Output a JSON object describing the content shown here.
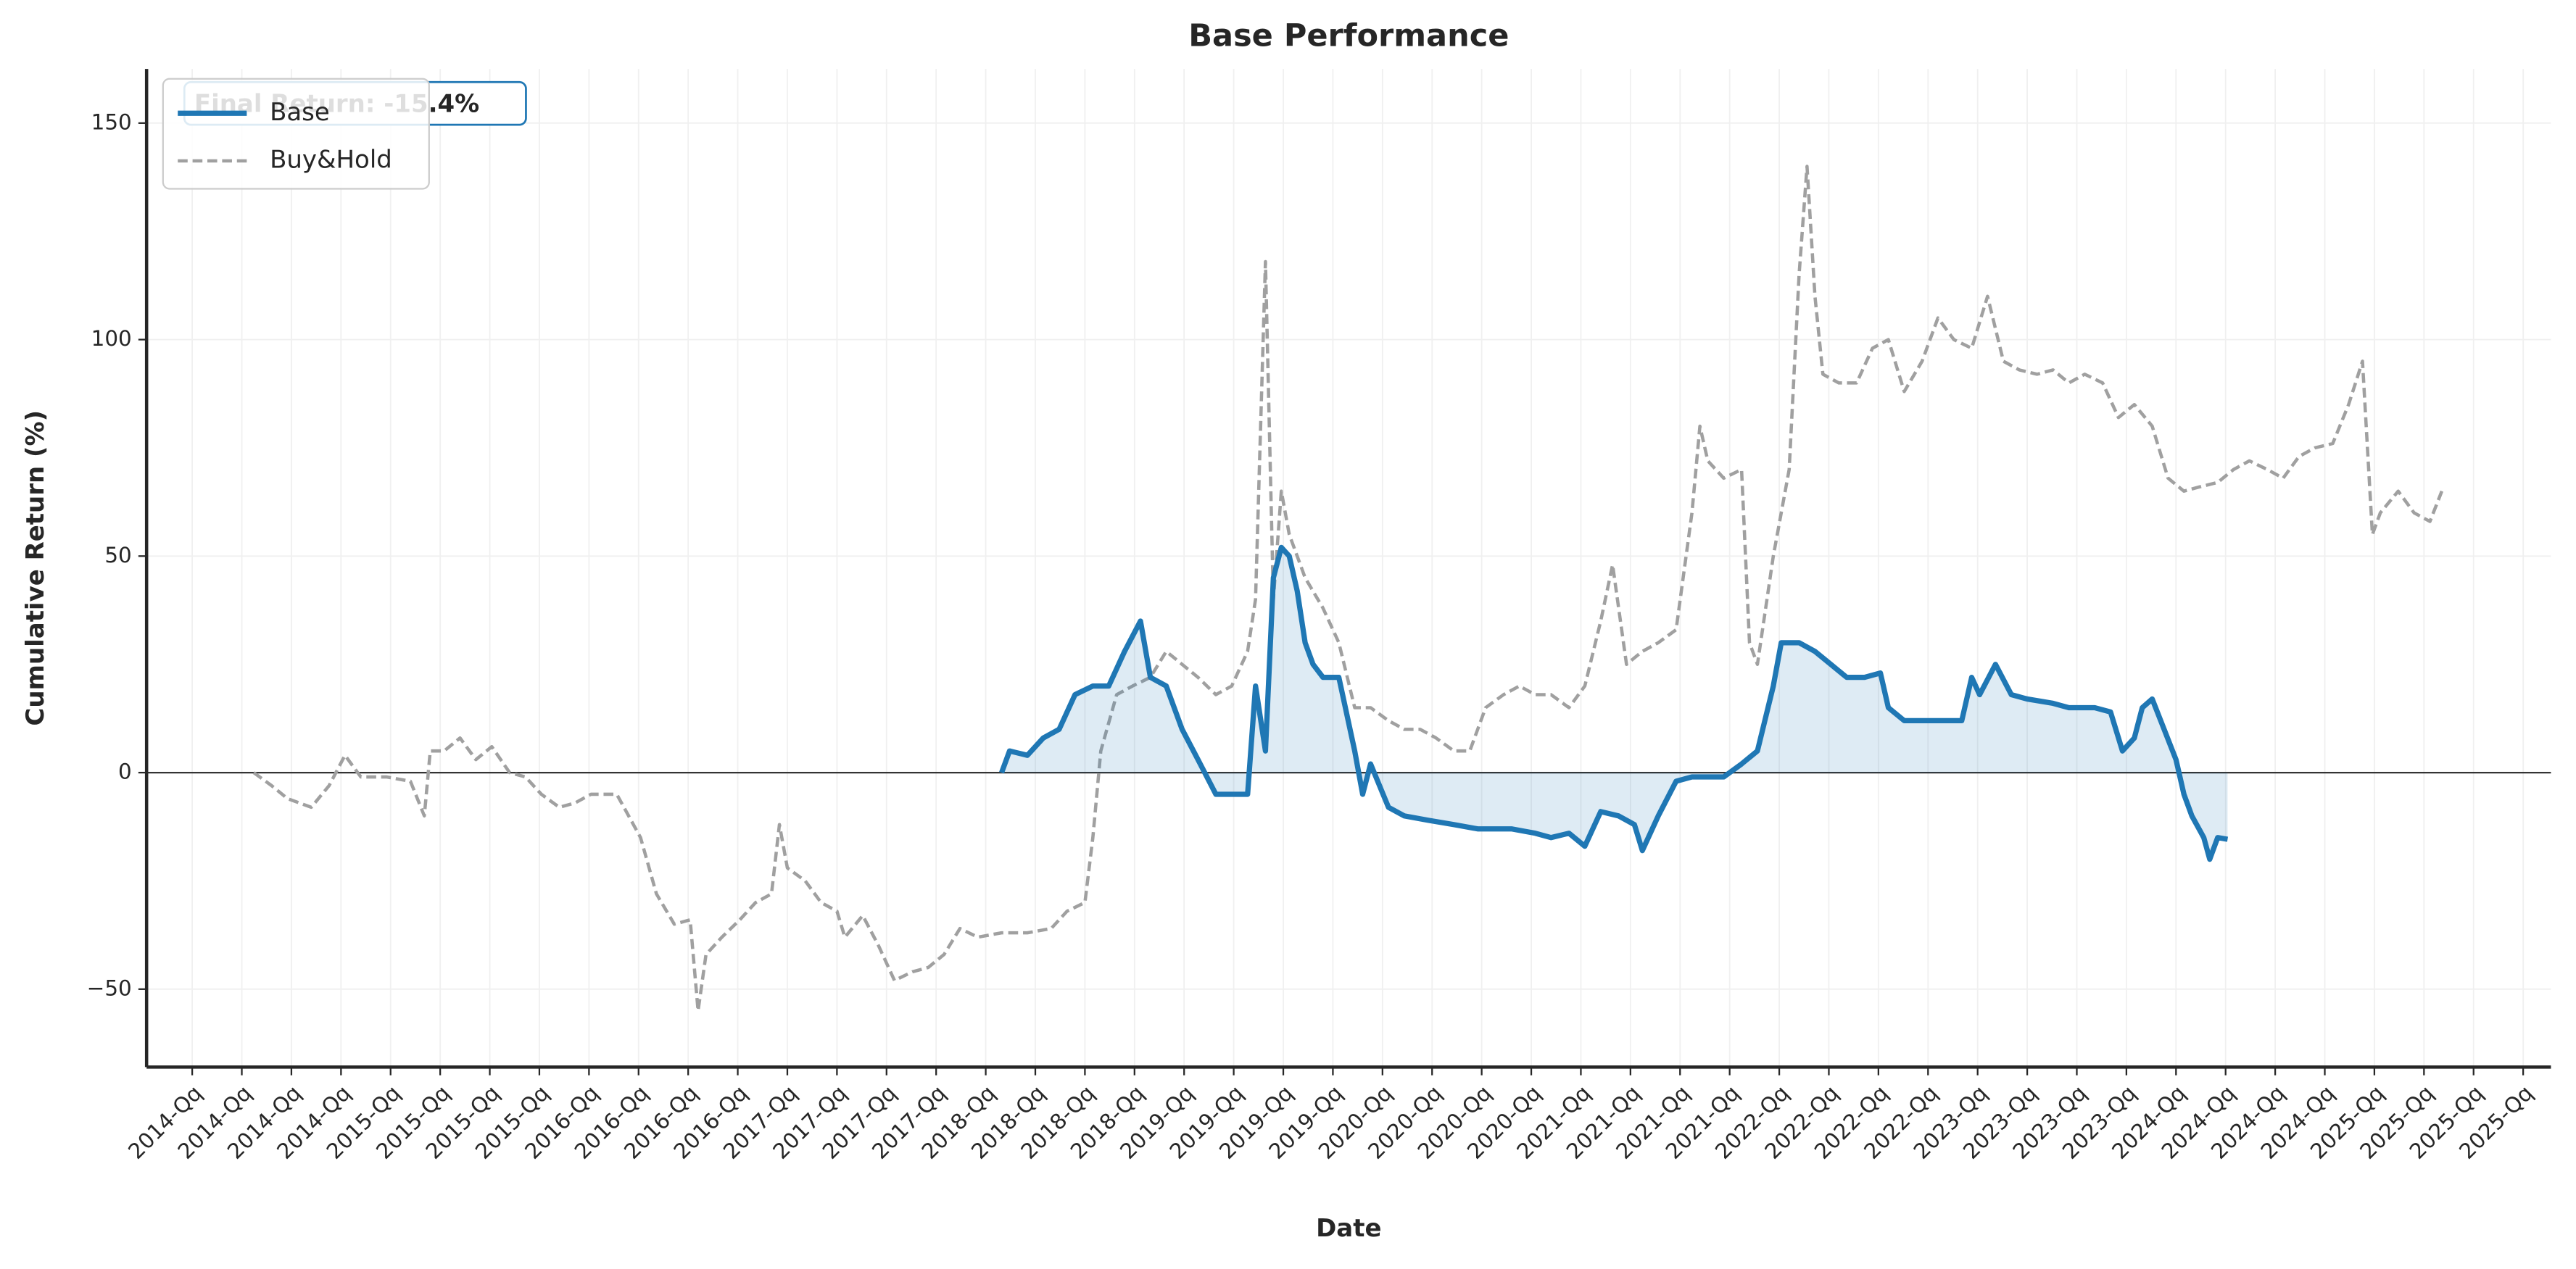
{
  "chart_data": {
    "type": "line",
    "title": "Base Performance",
    "xlabel": "Date",
    "ylabel": "Cumulative Return (%)",
    "annotation": "Final Return: -15.4%",
    "xlim": [
      2013.77,
      2025.89
    ],
    "ylim": [
      -68,
      162.5
    ],
    "yticks": [
      {
        "value": -50,
        "label": "−50"
      },
      0,
      50,
      100,
      150
    ],
    "xticks": [
      {
        "value": 2014,
        "label": "2014-Qq"
      },
      {
        "value": 2014.25,
        "label": "2014-Qq"
      },
      {
        "value": 2014.5,
        "label": "2014-Qq"
      },
      {
        "value": 2014.75,
        "label": "2014-Qq"
      },
      {
        "value": 2015,
        "label": "2015-Qq"
      },
      {
        "value": 2015.25,
        "label": "2015-Qq"
      },
      {
        "value": 2015.5,
        "label": "2015-Qq"
      },
      {
        "value": 2015.75,
        "label": "2015-Qq"
      },
      {
        "value": 2016,
        "label": "2016-Qq"
      },
      {
        "value": 2016.25,
        "label": "2016-Qq"
      },
      {
        "value": 2016.5,
        "label": "2016-Qq"
      },
      {
        "value": 2016.75,
        "label": "2016-Qq"
      },
      {
        "value": 2017,
        "label": "2017-Qq"
      },
      {
        "value": 2017.25,
        "label": "2017-Qq"
      },
      {
        "value": 2017.5,
        "label": "2017-Qq"
      },
      {
        "value": 2017.75,
        "label": "2017-Qq"
      },
      {
        "value": 2018,
        "label": "2018-Qq"
      },
      {
        "value": 2018.25,
        "label": "2018-Qq"
      },
      {
        "value": 2018.5,
        "label": "2018-Qq"
      },
      {
        "value": 2018.75,
        "label": "2018-Qq"
      },
      {
        "value": 2019,
        "label": "2019-Qq"
      },
      {
        "value": 2019.25,
        "label": "2019-Qq"
      },
      {
        "value": 2019.5,
        "label": "2019-Qq"
      },
      {
        "value": 2019.75,
        "label": "2019-Qq"
      },
      {
        "value": 2020,
        "label": "2020-Qq"
      },
      {
        "value": 2020.25,
        "label": "2020-Qq"
      },
      {
        "value": 2020.5,
        "label": "2020-Qq"
      },
      {
        "value": 2020.75,
        "label": "2020-Qq"
      },
      {
        "value": 2021,
        "label": "2021-Qq"
      },
      {
        "value": 2021.25,
        "label": "2021-Qq"
      },
      {
        "value": 2021.5,
        "label": "2021-Qq"
      },
      {
        "value": 2021.75,
        "label": "2021-Qq"
      },
      {
        "value": 2022,
        "label": "2022-Qq"
      },
      {
        "value": 2022.25,
        "label": "2022-Qq"
      },
      {
        "value": 2022.5,
        "label": "2022-Qq"
      },
      {
        "value": 2022.75,
        "label": "2022-Qq"
      },
      {
        "value": 2023,
        "label": "2023-Qq"
      },
      {
        "value": 2023.25,
        "label": "2023-Qq"
      },
      {
        "value": 2023.5,
        "label": "2023-Qq"
      },
      {
        "value": 2023.75,
        "label": "2023-Qq"
      },
      {
        "value": 2024,
        "label": "2024-Qq"
      },
      {
        "value": 2024.25,
        "label": "2024-Qq"
      },
      {
        "value": 2024.5,
        "label": "2024-Qq"
      },
      {
        "value": 2024.75,
        "label": "2024-Qq"
      },
      {
        "value": 2025,
        "label": "2025-Qq"
      },
      {
        "value": 2025.25,
        "label": "2025-Qq"
      },
      {
        "value": 2025.5,
        "label": "2025-Qq"
      },
      {
        "value": 2025.75,
        "label": "2025-Qq"
      }
    ],
    "grid": true,
    "legend": "upper left",
    "series": [
      {
        "name": "Base",
        "color": "#1f77b4",
        "fill": true,
        "x": [
          2018.08,
          2018.12,
          2018.21,
          2018.29,
          2018.37,
          2018.45,
          2018.54,
          2018.62,
          2018.7,
          2018.78,
          2018.83,
          2018.91,
          2018.99,
          2019.07,
          2019.16,
          2019.24,
          2019.32,
          2019.36,
          2019.41,
          2019.45,
          2019.49,
          2019.53,
          2019.57,
          2019.61,
          2019.65,
          2019.7,
          2019.78,
          2019.86,
          2019.9,
          2019.94,
          2020.03,
          2020.11,
          2020.23,
          2020.36,
          2020.48,
          2020.65,
          2020.77,
          2020.85,
          2020.94,
          2021.02,
          2021.1,
          2021.19,
          2021.27,
          2021.31,
          2021.39,
          2021.48,
          2021.56,
          2021.64,
          2021.72,
          2021.81,
          2021.89,
          2021.97,
          2022.01,
          2022.1,
          2022.18,
          2022.26,
          2022.34,
          2022.43,
          2022.51,
          2022.55,
          2022.63,
          2022.72,
          2022.84,
          2022.92,
          2022.97,
          2023.01,
          2023.09,
          2023.17,
          2023.25,
          2023.38,
          2023.46,
          2023.59,
          2023.67,
          2023.73,
          2023.79,
          2023.83,
          2023.88,
          2023.94,
          2024.0,
          2024.04,
          2024.08,
          2024.14,
          2024.17,
          2024.21,
          2024.26
        ],
        "values": [
          0,
          5,
          4,
          8,
          10,
          18,
          20,
          20,
          28,
          35,
          22,
          20,
          10,
          3,
          -5,
          -5,
          -5,
          20,
          5,
          45,
          52,
          50,
          42,
          30,
          25,
          22,
          22,
          5,
          -5,
          2,
          -8,
          -10,
          -11,
          -12,
          -13,
          -13,
          -14,
          -15,
          -14,
          -17,
          -9,
          -10,
          -12,
          -18,
          -10,
          -2,
          -1,
          -1,
          -1,
          2,
          5,
          20,
          30,
          30,
          28,
          25,
          22,
          22,
          23,
          15,
          12,
          12,
          12,
          12,
          22,
          18,
          25,
          18,
          17,
          16,
          15,
          15,
          14,
          5,
          8,
          15,
          17,
          10,
          3,
          -5,
          -10,
          -15,
          -20,
          -15,
          -15.4
        ]
      },
      {
        "name": "Buy&Hold",
        "color": "#a0a0a0",
        "dashed": true,
        "x": [
          2014.31,
          2014.4,
          2014.48,
          2014.6,
          2014.69,
          2014.77,
          2014.85,
          2014.98,
          2015.1,
          2015.17,
          2015.2,
          2015.27,
          2015.35,
          2015.43,
          2015.51,
          2015.6,
          2015.68,
          2015.76,
          2015.85,
          2015.93,
          2016.01,
          2016.14,
          2016.26,
          2016.34,
          2016.43,
          2016.51,
          2016.55,
          2016.59,
          2016.67,
          2016.76,
          2016.84,
          2016.92,
          2016.96,
          2017.0,
          2017.09,
          2017.17,
          2017.25,
          2017.29,
          2017.38,
          2017.46,
          2017.54,
          2017.63,
          2017.71,
          2017.79,
          2017.87,
          2017.96,
          2018.08,
          2018.21,
          2018.33,
          2018.41,
          2018.5,
          2018.54,
          2018.58,
          2018.66,
          2018.74,
          2018.83,
          2018.91,
          2018.99,
          2019.07,
          2019.16,
          2019.24,
          2019.32,
          2019.36,
          2019.41,
          2019.45,
          2019.49,
          2019.53,
          2019.57,
          2019.61,
          2019.7,
          2019.78,
          2019.86,
          2019.94,
          2020.03,
          2020.11,
          2020.19,
          2020.27,
          2020.36,
          2020.44,
          2020.52,
          2020.61,
          2020.69,
          2020.77,
          2020.85,
          2020.94,
          2021.02,
          2021.1,
          2021.16,
          2021.23,
          2021.31,
          2021.39,
          2021.48,
          2021.56,
          2021.6,
          2021.64,
          2021.72,
          2021.81,
          2021.85,
          2021.89,
          2021.97,
          2022.05,
          2022.1,
          2022.14,
          2022.18,
          2022.22,
          2022.3,
          2022.39,
          2022.47,
          2022.55,
          2022.63,
          2022.72,
          2022.8,
          2022.88,
          2022.97,
          2023.05,
          2023.13,
          2023.21,
          2023.3,
          2023.38,
          2023.46,
          2023.54,
          2023.63,
          2023.71,
          2023.79,
          2023.88,
          2023.96,
          2024.04,
          2024.12,
          2024.21,
          2024.29,
          2024.37,
          2024.46,
          2024.54,
          2024.62,
          2024.7,
          2024.79,
          2024.87,
          2024.94,
          2024.99,
          2025.03,
          2025.12,
          2025.2,
          2025.28,
          2025.34
        ],
        "values": [
          0,
          -3,
          -6,
          -8,
          -3,
          4,
          -1,
          -1,
          -2,
          -10,
          5,
          5,
          8,
          3,
          6,
          0,
          -1,
          -5,
          -8,
          -7,
          -5,
          -5,
          -15,
          -28,
          -35,
          -34,
          -55,
          -42,
          -38,
          -34,
          -30,
          -28,
          -12,
          -22,
          -25,
          -30,
          -32,
          -38,
          -33,
          -40,
          -48,
          -46,
          -45,
          -42,
          -36,
          -38,
          -37,
          -37,
          -36,
          -32,
          -30,
          -15,
          5,
          18,
          20,
          22,
          28,
          25,
          22,
          18,
          20,
          28,
          40,
          118,
          40,
          65,
          55,
          50,
          45,
          38,
          30,
          15,
          15,
          12,
          10,
          10,
          8,
          5,
          5,
          15,
          18,
          20,
          18,
          18,
          15,
          20,
          35,
          48,
          25,
          28,
          30,
          33,
          60,
          80,
          72,
          68,
          70,
          30,
          25,
          50,
          70,
          115,
          140,
          110,
          92,
          90,
          90,
          98,
          100,
          88,
          95,
          105,
          100,
          98,
          110,
          95,
          93,
          92,
          93,
          90,
          92,
          90,
          82,
          85,
          80,
          68,
          65,
          66,
          67,
          70,
          72,
          70,
          68,
          73,
          75,
          76,
          85,
          95,
          55,
          60,
          65,
          60,
          58,
          65
        ]
      }
    ]
  }
}
